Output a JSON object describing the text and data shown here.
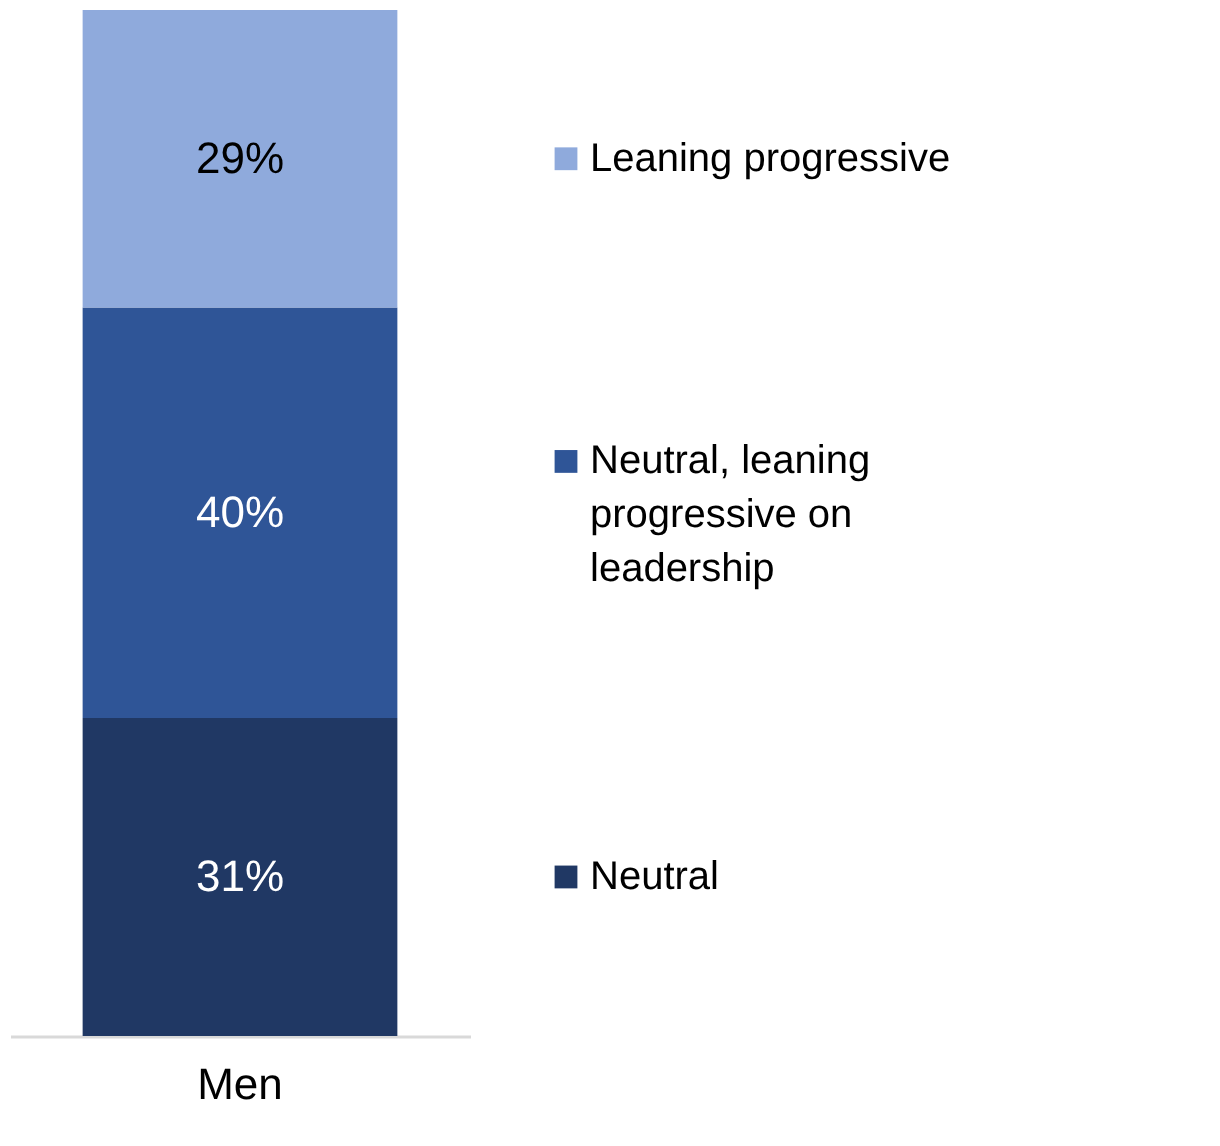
{
  "chart_data": {
    "type": "bar",
    "stacked": true,
    "categories": [
      "Men"
    ],
    "legend": "right",
    "grid": false,
    "series": [
      {
        "name": "Neutral",
        "color": "#203864",
        "values": [
          31
        ],
        "value_labels": [
          "31%"
        ]
      },
      {
        "name": "Neutral, leaning progressive on leadership",
        "color": "#2f5597",
        "values": [
          40
        ],
        "value_labels": [
          "40%"
        ]
      },
      {
        "name": "Leaning progressive",
        "color": "#8faadc",
        "values": [
          29
        ],
        "value_labels": [
          "29%"
        ]
      }
    ]
  }
}
